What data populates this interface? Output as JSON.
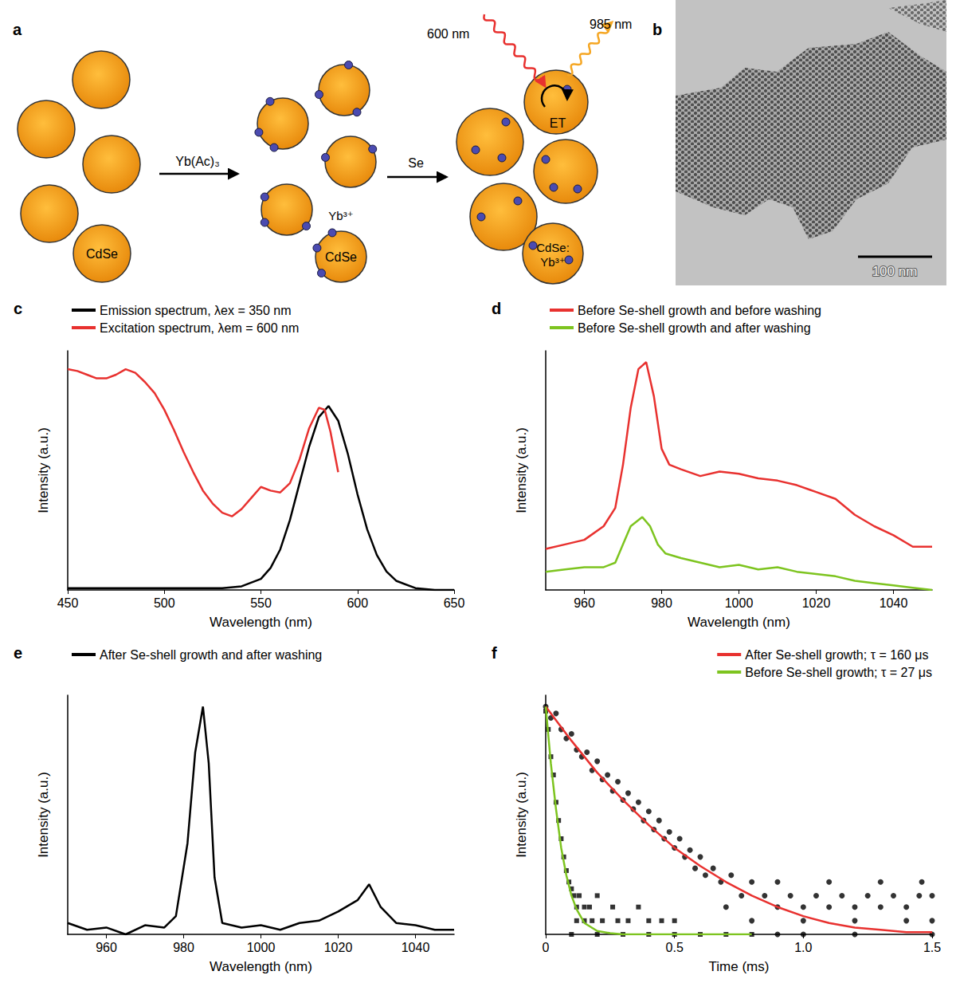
{
  "diagram": {
    "panel": "a",
    "reagent_1": "Yb(Ac)₃",
    "reagent_2": "Se",
    "core_label": "CdSe",
    "ion_label": "Yb³⁺",
    "doped_label": [
      "CdSe:",
      "Yb³⁺"
    ],
    "excitation": "600 nm",
    "emission": "985 nm",
    "transfer": "ET"
  },
  "image": {
    "panel": "b",
    "scale_bar": "100 nm"
  },
  "chart_data": [
    {
      "panel": "c",
      "type": "line",
      "xlabel": "Wavelength (nm)",
      "ylabel": "Intensity (a.u.)",
      "xlim": [
        450,
        650
      ],
      "xticks": [
        450,
        500,
        550,
        600,
        650
      ],
      "ylim": [
        0,
        1.3
      ],
      "tick_labels": "x",
      "grid": false,
      "legend": "upper left",
      "series": [
        {
          "name": "Emission spectrum, λex = 350 nm",
          "color": "#000000",
          "x": [
            450,
            470,
            490,
            510,
            530,
            540,
            550,
            555,
            560,
            565,
            570,
            575,
            580,
            585,
            590,
            595,
            600,
            605,
            610,
            615,
            620,
            630,
            640,
            650
          ],
          "values": [
            0.01,
            0.01,
            0.01,
            0.01,
            0.01,
            0.02,
            0.06,
            0.12,
            0.22,
            0.38,
            0.58,
            0.78,
            0.94,
            1.0,
            0.92,
            0.74,
            0.52,
            0.33,
            0.19,
            0.1,
            0.05,
            0.01,
            0.0,
            0.0
          ]
        },
        {
          "name": "Excitation spectrum, λem = 600 nm",
          "color": "#e8312f",
          "x": [
            450,
            455,
            460,
            465,
            470,
            475,
            480,
            485,
            490,
            495,
            500,
            505,
            510,
            515,
            520,
            525,
            530,
            535,
            540,
            545,
            550,
            555,
            560,
            565,
            570,
            575,
            580,
            583,
            586,
            590
          ],
          "values": [
            1.2,
            1.19,
            1.17,
            1.15,
            1.15,
            1.17,
            1.2,
            1.18,
            1.13,
            1.07,
            0.98,
            0.87,
            0.75,
            0.64,
            0.54,
            0.47,
            0.42,
            0.4,
            0.44,
            0.5,
            0.56,
            0.54,
            0.53,
            0.58,
            0.71,
            0.88,
            0.99,
            0.98,
            0.86,
            0.64
          ]
        }
      ]
    },
    {
      "panel": "d",
      "type": "line",
      "xlabel": "Wavelength (nm)",
      "ylabel": "Intensity (a.u.)",
      "xlim": [
        950,
        1050
      ],
      "xticks": [
        960,
        980,
        1000,
        1020,
        1040
      ],
      "ylim": [
        0,
        1.05
      ],
      "tick_labels": "x",
      "grid": false,
      "legend": "upper left",
      "series": [
        {
          "name": "Before Se-shell growth and before washing",
          "color": "#e8312f",
          "x": [
            950,
            955,
            960,
            965,
            968,
            970,
            972,
            974,
            976,
            978,
            980,
            982,
            985,
            990,
            995,
            1000,
            1005,
            1010,
            1015,
            1020,
            1025,
            1030,
            1035,
            1040,
            1045,
            1050
          ],
          "values": [
            0.18,
            0.2,
            0.22,
            0.28,
            0.36,
            0.55,
            0.8,
            0.97,
            1.0,
            0.85,
            0.62,
            0.55,
            0.53,
            0.5,
            0.52,
            0.51,
            0.49,
            0.48,
            0.46,
            0.43,
            0.4,
            0.33,
            0.28,
            0.24,
            0.19,
            0.19
          ]
        },
        {
          "name": "Before Se-shell growth and after washing",
          "color": "#7dc41f",
          "x": [
            950,
            955,
            960,
            965,
            968,
            970,
            972,
            975,
            977,
            979,
            981,
            985,
            990,
            995,
            1000,
            1005,
            1010,
            1015,
            1020,
            1025,
            1030,
            1035,
            1040,
            1045,
            1050
          ],
          "values": [
            0.08,
            0.09,
            0.1,
            0.1,
            0.12,
            0.2,
            0.28,
            0.32,
            0.28,
            0.2,
            0.16,
            0.14,
            0.12,
            0.1,
            0.11,
            0.09,
            0.1,
            0.08,
            0.07,
            0.06,
            0.04,
            0.03,
            0.02,
            0.01,
            0.0
          ]
        }
      ]
    },
    {
      "panel": "e",
      "type": "line",
      "xlabel": "Wavelength (nm)",
      "ylabel": "Intensity (a.u.)",
      "xlim": [
        950,
        1050
      ],
      "xticks": [
        960,
        980,
        1000,
        1020,
        1040
      ],
      "ylim": [
        0,
        1.05
      ],
      "tick_labels": "x",
      "grid": false,
      "legend": "upper left",
      "series": [
        {
          "name": "After Se-shell growth and after washing",
          "color": "#000000",
          "x": [
            950,
            955,
            960,
            965,
            970,
            975,
            978,
            981,
            983,
            985,
            986.5,
            988,
            990,
            995,
            1000,
            1005,
            1010,
            1015,
            1020,
            1025,
            1028,
            1031,
            1035,
            1040,
            1045,
            1050
          ],
          "values": [
            0.05,
            0.02,
            0.03,
            0.0,
            0.04,
            0.03,
            0.08,
            0.4,
            0.8,
            1.0,
            0.75,
            0.25,
            0.05,
            0.03,
            0.04,
            0.02,
            0.05,
            0.06,
            0.1,
            0.15,
            0.22,
            0.12,
            0.05,
            0.04,
            0.02,
            0.02
          ]
        }
      ]
    },
    {
      "panel": "f",
      "type": "scatter",
      "xlabel": "Time (ms)",
      "ylabel": "Intensity (a.u.)",
      "xlim": [
        0,
        1.5
      ],
      "xticks": [
        0,
        0.5,
        {
          "value": 1,
          "label": "1.0"
        },
        1.5
      ],
      "ylim": [
        0,
        1.05
      ],
      "tick_labels": "x",
      "grid": false,
      "legend": "upper right",
      "series": [
        {
          "type": "scatter",
          "marker": "circle",
          "color": "#000000",
          "x": [
            0,
            0.02,
            0.04,
            0.06,
            0.08,
            0.1,
            0.12,
            0.14,
            0.16,
            0.18,
            0.2,
            0.22,
            0.24,
            0.26,
            0.28,
            0.3,
            0.32,
            0.34,
            0.36,
            0.38,
            0.4,
            0.42,
            0.44,
            0.46,
            0.48,
            0.5,
            0.52,
            0.54,
            0.56,
            0.58,
            0.6,
            0.62,
            0.65,
            0.68,
            0.72,
            0.76,
            0.8,
            0.85,
            0.9,
            0.95,
            1.0,
            1.05,
            1.1,
            1.15,
            1.2,
            1.25,
            1.3,
            1.35,
            1.4,
            1.45,
            1.5,
            0.9,
            1.1,
            1.3,
            1.46,
            0.7,
            0.8,
            1.0,
            1.2,
            1.4,
            1.5,
            0.9,
            1.0,
            1.2,
            1.5
          ],
          "values": [
            1.0,
            0.95,
            0.97,
            0.9,
            0.86,
            0.88,
            0.81,
            0.78,
            0.8,
            0.72,
            0.76,
            0.68,
            0.7,
            0.63,
            0.67,
            0.59,
            0.62,
            0.55,
            0.58,
            0.5,
            0.54,
            0.46,
            0.5,
            0.42,
            0.45,
            0.38,
            0.42,
            0.34,
            0.37,
            0.29,
            0.34,
            0.26,
            0.29,
            0.23,
            0.26,
            0.17,
            0.23,
            0.17,
            0.12,
            0.17,
            0.12,
            0.17,
            0.12,
            0.17,
            0.12,
            0.17,
            0.12,
            0.17,
            0.12,
            0.17,
            0.17,
            0.23,
            0.23,
            0.23,
            0.23,
            0.12,
            0.06,
            0.06,
            0.06,
            0.06,
            0.06,
            0.0,
            0.0,
            0.0,
            0.0
          ]
        },
        {
          "type": "scatter",
          "marker": "square",
          "color": "#000000",
          "x": [
            0,
            0.01,
            0.02,
            0.03,
            0.04,
            0.05,
            0.06,
            0.07,
            0.08,
            0.09,
            0.1,
            0.11,
            0.12,
            0.13,
            0.15,
            0.17,
            0.2,
            0.18,
            0.22,
            0.26,
            0.28,
            0.32,
            0.36,
            0.4,
            0.45,
            0.5,
            0.1,
            0.2,
            0.3,
            0.4,
            0.5,
            0.6,
            0.7,
            0.8,
            0.15,
            0.12
          ],
          "values": [
            0.98,
            0.9,
            0.78,
            0.7,
            0.58,
            0.5,
            0.42,
            0.34,
            0.28,
            0.23,
            0.2,
            0.17,
            0.12,
            0.17,
            0.12,
            0.12,
            0.17,
            0.06,
            0.06,
            0.12,
            0.06,
            0.06,
            0.12,
            0.06,
            0.06,
            0.06,
            0.0,
            0.0,
            0.0,
            0.0,
            0.0,
            0.0,
            0.0,
            0.0,
            0.06,
            0.06
          ]
        },
        {
          "type": "line",
          "name": "After Se-shell growth; τ = 160 μs",
          "color": "#e8312f",
          "x": [
            0,
            0.1,
            0.2,
            0.3,
            0.4,
            0.5,
            0.6,
            0.7,
            0.8,
            0.9,
            1.0,
            1.1,
            1.2,
            1.3,
            1.4,
            1.5
          ],
          "values": [
            1.0,
            0.85,
            0.71,
            0.59,
            0.48,
            0.38,
            0.3,
            0.23,
            0.17,
            0.12,
            0.08,
            0.05,
            0.03,
            0.02,
            0.01,
            0.01
          ]
        },
        {
          "type": "line",
          "name": "Before Se-shell growth; τ = 27 μs",
          "color": "#7dc41f",
          "x": [
            0,
            0.02,
            0.04,
            0.06,
            0.08,
            0.1,
            0.12,
            0.15,
            0.2,
            0.25,
            0.3,
            0.8
          ],
          "values": [
            1.0,
            0.75,
            0.55,
            0.38,
            0.26,
            0.17,
            0.11,
            0.05,
            0.015,
            0.005,
            0.0,
            0.0
          ]
        }
      ]
    }
  ]
}
